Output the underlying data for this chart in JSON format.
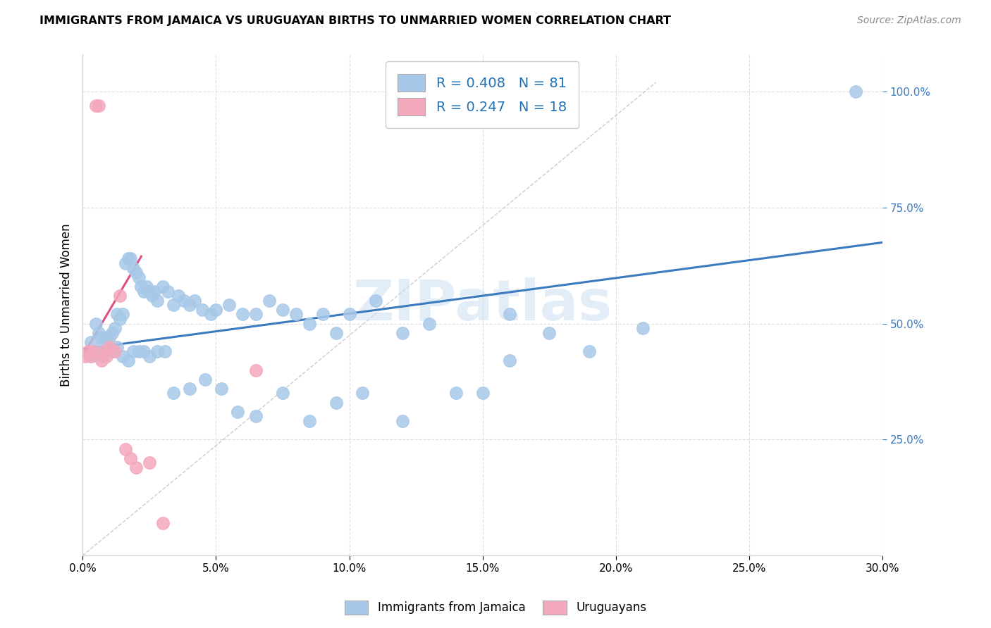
{
  "title": "IMMIGRANTS FROM JAMAICA VS URUGUAYAN BIRTHS TO UNMARRIED WOMEN CORRELATION CHART",
  "source": "Source: ZipAtlas.com",
  "xlim": [
    0.0,
    0.3
  ],
  "ylim": [
    0.0,
    1.08
  ],
  "legend1_label": "Immigrants from Jamaica",
  "legend2_label": "Uruguayans",
  "r1": 0.408,
  "n1": 81,
  "r2": 0.247,
  "n2": 18,
  "blue_color": "#a8c8e8",
  "pink_color": "#f4a8bc",
  "blue_line_color": "#3a7abf",
  "pink_line_color": "#e05080",
  "gray_line_color": "#cccccc",
  "watermark_color": "#c8ddf0",
  "watermark_text": "ZIPatlas",
  "ylabel_text": "Births to Unmarried Women",
  "blue_line_x": [
    0.0,
    0.3
  ],
  "blue_line_y": [
    0.445,
    0.675
  ],
  "pink_line_x": [
    0.0,
    0.022
  ],
  "pink_line_y": [
    0.43,
    0.645
  ],
  "gray_line_x": [
    0.0,
    0.215
  ],
  "gray_line_y": [
    0.0,
    1.02
  ],
  "x_tick_vals": [
    0.0,
    0.05,
    0.1,
    0.15,
    0.2,
    0.25,
    0.3
  ],
  "y_tick_vals": [
    0.25,
    0.5,
    0.75,
    1.0
  ],
  "x_tick_labels": [
    "0.0%",
    "",
    "5.0%",
    "",
    "10.0%",
    "",
    "15.0%",
    "",
    "20.0%",
    "",
    "25.0%",
    "",
    "30.0%"
  ],
  "blue_x": [
    0.003,
    0.005,
    0.006,
    0.007,
    0.008,
    0.009,
    0.01,
    0.011,
    0.012,
    0.013,
    0.014,
    0.015,
    0.016,
    0.017,
    0.018,
    0.019,
    0.02,
    0.021,
    0.022,
    0.023,
    0.024,
    0.025,
    0.026,
    0.027,
    0.028,
    0.03,
    0.032,
    0.034,
    0.036,
    0.038,
    0.04,
    0.042,
    0.045,
    0.048,
    0.05,
    0.055,
    0.06,
    0.065,
    0.07,
    0.075,
    0.08,
    0.085,
    0.09,
    0.095,
    0.1,
    0.11,
    0.12,
    0.13,
    0.14,
    0.15,
    0.16,
    0.175,
    0.19,
    0.21,
    0.003,
    0.005,
    0.007,
    0.009,
    0.011,
    0.013,
    0.015,
    0.017,
    0.019,
    0.021,
    0.023,
    0.025,
    0.028,
    0.031,
    0.034,
    0.04,
    0.046,
    0.052,
    0.058,
    0.065,
    0.075,
    0.085,
    0.095,
    0.105,
    0.12,
    0.16,
    0.29
  ],
  "blue_y": [
    0.46,
    0.5,
    0.48,
    0.47,
    0.46,
    0.47,
    0.47,
    0.48,
    0.49,
    0.52,
    0.51,
    0.52,
    0.63,
    0.64,
    0.64,
    0.62,
    0.61,
    0.6,
    0.58,
    0.57,
    0.58,
    0.57,
    0.56,
    0.57,
    0.55,
    0.58,
    0.57,
    0.54,
    0.56,
    0.55,
    0.54,
    0.55,
    0.53,
    0.52,
    0.53,
    0.54,
    0.52,
    0.52,
    0.55,
    0.53,
    0.52,
    0.5,
    0.52,
    0.48,
    0.52,
    0.55,
    0.48,
    0.5,
    0.35,
    0.35,
    0.52,
    0.48,
    0.44,
    0.49,
    0.43,
    0.44,
    0.43,
    0.44,
    0.44,
    0.45,
    0.43,
    0.42,
    0.44,
    0.44,
    0.44,
    0.43,
    0.44,
    0.44,
    0.35,
    0.36,
    0.38,
    0.36,
    0.31,
    0.3,
    0.35,
    0.29,
    0.33,
    0.35,
    0.29,
    0.42,
    1.0
  ],
  "pink_x": [
    0.001,
    0.002,
    0.003,
    0.004,
    0.005,
    0.006,
    0.007,
    0.008,
    0.009,
    0.01,
    0.012,
    0.014,
    0.016,
    0.018,
    0.02,
    0.025,
    0.03,
    0.065
  ],
  "pink_y": [
    0.43,
    0.44,
    0.43,
    0.44,
    0.97,
    0.97,
    0.42,
    0.44,
    0.43,
    0.45,
    0.44,
    0.56,
    0.23,
    0.21,
    0.19,
    0.2,
    0.07,
    0.4
  ]
}
